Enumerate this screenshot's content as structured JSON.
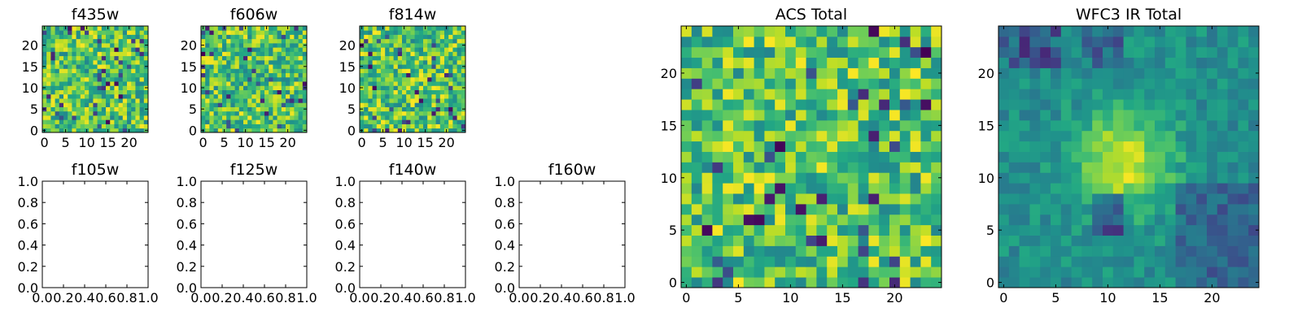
{
  "chart_data": [
    {
      "type": "heatmap",
      "title": "f435w",
      "xlim": [
        0,
        24
      ],
      "ylim": [
        0,
        24
      ],
      "xticks": [
        "0",
        "5",
        "10",
        "15",
        "20"
      ],
      "yticks": [
        "0",
        "5",
        "10",
        "15",
        "20"
      ],
      "grid": false,
      "colormap": "viridis"
    },
    {
      "type": "heatmap",
      "title": "f606w",
      "xlim": [
        0,
        24
      ],
      "ylim": [
        0,
        24
      ],
      "xticks": [
        "0",
        "5",
        "10",
        "15",
        "20"
      ],
      "yticks": [
        "0",
        "5",
        "10",
        "15",
        "20"
      ],
      "grid": false,
      "colormap": "viridis"
    },
    {
      "type": "heatmap",
      "title": "f814w",
      "xlim": [
        0,
        24
      ],
      "ylim": [
        0,
        24
      ],
      "xticks": [
        "0",
        "5",
        "10",
        "15",
        "20"
      ],
      "yticks": [
        "0",
        "5",
        "10",
        "15",
        "20"
      ],
      "grid": false,
      "colormap": "viridis"
    },
    {
      "type": "empty",
      "title": "f105w",
      "xlim": [
        0,
        1
      ],
      "ylim": [
        0,
        1
      ],
      "xticks": [
        "0.0",
        "0.2",
        "0.4",
        "0.6",
        "0.8",
        "1.0"
      ],
      "yticks": [
        "0.0",
        "0.2",
        "0.4",
        "0.6",
        "0.8",
        "1.0"
      ]
    },
    {
      "type": "empty",
      "title": "f125w",
      "xlim": [
        0,
        1
      ],
      "ylim": [
        0,
        1
      ],
      "xticks": [
        "0.0",
        "0.2",
        "0.4",
        "0.6",
        "0.8",
        "1.0"
      ],
      "yticks": [
        "0.0",
        "0.2",
        "0.4",
        "0.6",
        "0.8",
        "1.0"
      ]
    },
    {
      "type": "empty",
      "title": "f140w",
      "xlim": [
        0,
        1
      ],
      "ylim": [
        0,
        1
      ],
      "xticks": [
        "0.0",
        "0.2",
        "0.4",
        "0.6",
        "0.8",
        "1.0"
      ],
      "yticks": [
        "0.0",
        "0.2",
        "0.4",
        "0.6",
        "0.8",
        "1.0"
      ]
    },
    {
      "type": "empty",
      "title": "f160w",
      "xlim": [
        0,
        1
      ],
      "ylim": [
        0,
        1
      ],
      "xticks": [
        "0.0",
        "0.2",
        "0.4",
        "0.6",
        "0.8",
        "1.0"
      ],
      "yticks": [
        "0.0",
        "0.2",
        "0.4",
        "0.6",
        "0.8",
        "1.0"
      ]
    },
    {
      "type": "heatmap",
      "title": "ACS Total",
      "xlim": [
        0,
        24
      ],
      "ylim": [
        0,
        24
      ],
      "xticks": [
        "0",
        "5",
        "10",
        "15",
        "20"
      ],
      "yticks": [
        "0",
        "5",
        "10",
        "15",
        "20"
      ],
      "grid": false,
      "colormap": "viridis"
    },
    {
      "type": "heatmap",
      "title": "WFC3 IR Total",
      "xlim": [
        0,
        24
      ],
      "ylim": [
        0,
        24
      ],
      "xticks": [
        "0",
        "5",
        "10",
        "15",
        "20"
      ],
      "yticks": [
        "0",
        "5",
        "10",
        "15",
        "20"
      ],
      "grid": false,
      "colormap": "viridis"
    }
  ]
}
